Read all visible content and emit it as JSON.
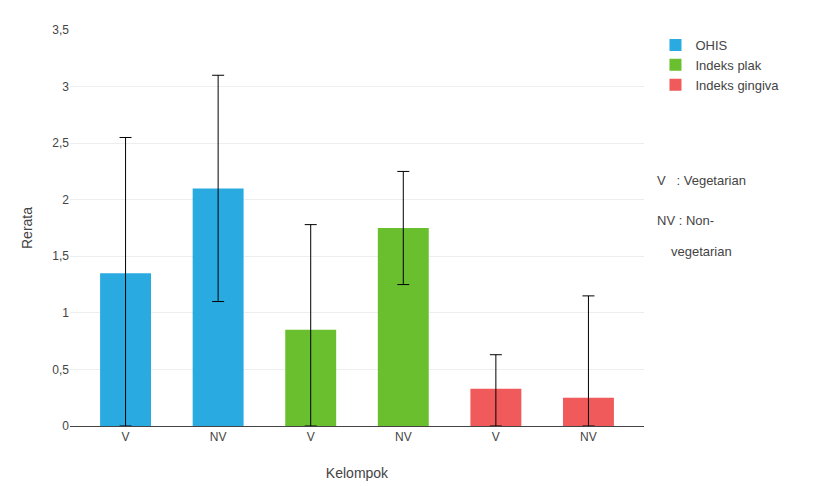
{
  "chart_data": {
    "type": "bar",
    "categories": [
      "V",
      "NV",
      "V",
      "NV",
      "V",
      "NV"
    ],
    "series": [
      {
        "name": "OHIS",
        "color": "#29ABE2",
        "values": [
          1.35,
          2.1,
          null,
          null,
          null,
          null
        ],
        "error_upper": [
          1.2,
          1.0,
          null,
          null,
          null,
          null
        ],
        "error_lower": [
          1.35,
          1.0,
          null,
          null,
          null,
          null
        ]
      },
      {
        "name": "Indeks plak",
        "color": "#6ABF2E",
        "values": [
          null,
          null,
          0.85,
          1.75,
          null,
          null
        ],
        "error_upper": [
          null,
          null,
          0.93,
          0.5,
          null,
          null
        ],
        "error_lower": [
          null,
          null,
          0.85,
          0.5,
          null,
          null
        ]
      },
      {
        "name": "Indeks gingiva",
        "color": "#F05A5A",
        "values": [
          null,
          null,
          null,
          null,
          0.33,
          0.25
        ],
        "error_upper": [
          null,
          null,
          null,
          null,
          0.3,
          0.9
        ],
        "error_lower": [
          null,
          null,
          null,
          null,
          0.33,
          0.25
        ]
      }
    ],
    "xlabel": "Kelompok",
    "ylabel": "Rerata",
    "ylim": [
      0,
      3.5
    ],
    "yticks": [
      0,
      {
        "value": 0.5,
        "label": "0,5"
      },
      1,
      {
        "value": 1.5,
        "label": "1,5"
      },
      2,
      {
        "value": 2.5,
        "label": "2,5"
      },
      3,
      {
        "value": 3.5,
        "label": "3,5"
      }
    ],
    "grid": true,
    "legend": "right",
    "annotations": [
      "V   : Vegetarian",
      "NV : Non-",
      "vegetarian"
    ]
  }
}
